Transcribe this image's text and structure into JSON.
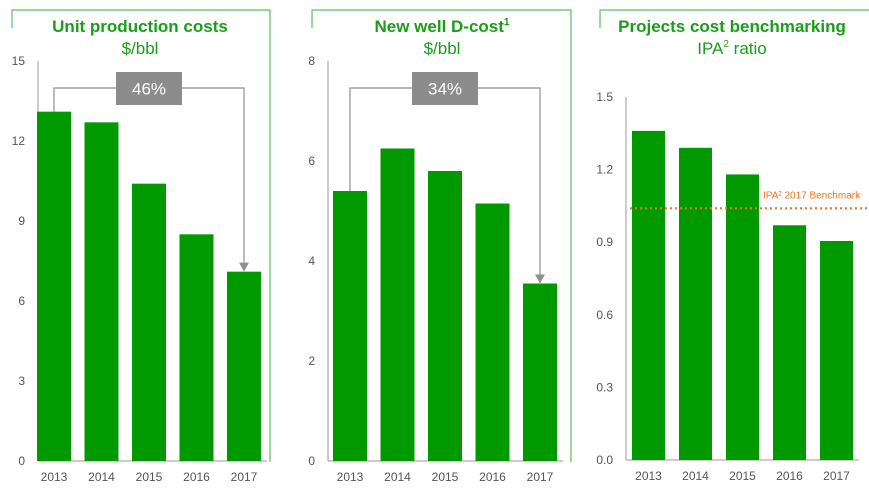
{
  "colors": {
    "bar": "#009a00",
    "title": "#1a9e1a",
    "frame": "#5cbf5c",
    "axis": "#9a9a9a",
    "callout_box": "#8c8c8c",
    "connector": "#909090",
    "benchmark": "#e87722"
  },
  "chart_data": [
    {
      "type": "bar",
      "title": "Unit production costs",
      "title_sup": "",
      "subtitle": "$/bbl",
      "subtitle_sup": "",
      "categories": [
        "2013",
        "2014",
        "2015",
        "2016",
        "2017"
      ],
      "values": [
        13.1,
        12.7,
        10.4,
        8.5,
        7.1
      ],
      "ylim": [
        0,
        15
      ],
      "yticks": [
        "0",
        "3",
        "6",
        "9",
        "12",
        "15"
      ],
      "ytick_values": [
        0,
        3,
        6,
        9,
        12,
        15
      ],
      "callout": {
        "label": "46%",
        "from_index": 0,
        "to_index": 4
      }
    },
    {
      "type": "bar",
      "title": "New well D-cost",
      "title_sup": "1",
      "subtitle": "$/bbl",
      "subtitle_sup": "",
      "categories": [
        "2013",
        "2014",
        "2015",
        "2016",
        "2017"
      ],
      "values": [
        5.4,
        6.25,
        5.8,
        5.15,
        3.55
      ],
      "ylim": [
        0,
        8
      ],
      "yticks": [
        "0",
        "2",
        "4",
        "6",
        "8"
      ],
      "ytick_values": [
        0,
        2,
        4,
        6,
        8
      ],
      "callout": {
        "label": "34%",
        "from_index": 0,
        "to_index": 4
      }
    },
    {
      "type": "bar",
      "title": "Projects cost benchmarking",
      "title_sup": "",
      "subtitle": "IPA",
      "subtitle_sup": "2",
      "subtitle_tail": " ratio",
      "categories": [
        "2013",
        "2014",
        "2015",
        "2016",
        "2017"
      ],
      "values": [
        1.36,
        1.29,
        1.18,
        0.97,
        0.905
      ],
      "ylim": [
        0,
        1.5
      ],
      "yticks": [
        "0.0",
        "0.3",
        "0.6",
        "0.9",
        "1.2",
        "1.5"
      ],
      "ytick_values": [
        0,
        0.3,
        0.6,
        0.9,
        1.2,
        1.5
      ],
      "benchmark": {
        "label": "IPA² 2017 Benchmark",
        "value": 1.04
      }
    }
  ]
}
